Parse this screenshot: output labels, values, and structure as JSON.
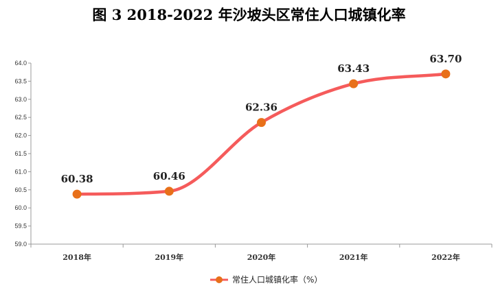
{
  "chart_data": {
    "type": "line",
    "title": "图 3 2018-2022 年沙坡头区常住人口城镇化率",
    "categories": [
      "2018年",
      "2019年",
      "2020年",
      "2021年",
      "2022年"
    ],
    "series": [
      {
        "name": "常住人口城镇化率（%）",
        "values": [
          60.38,
          60.46,
          62.36,
          63.43,
          63.7
        ],
        "color": "#F55B5B",
        "marker_color": "#E8701A"
      }
    ],
    "data_labels": [
      "60.38",
      "60.46",
      "62.36",
      "63.43",
      "63.70"
    ],
    "ylim": [
      59.0,
      64.0
    ],
    "yticks": [
      "59.0",
      "59.5",
      "60.0",
      "60.5",
      "61.0",
      "61.5",
      "62.0",
      "62.5",
      "63.0",
      "63.5",
      "64.0"
    ],
    "grid": false,
    "legend": "bottom",
    "smooth": true
  }
}
